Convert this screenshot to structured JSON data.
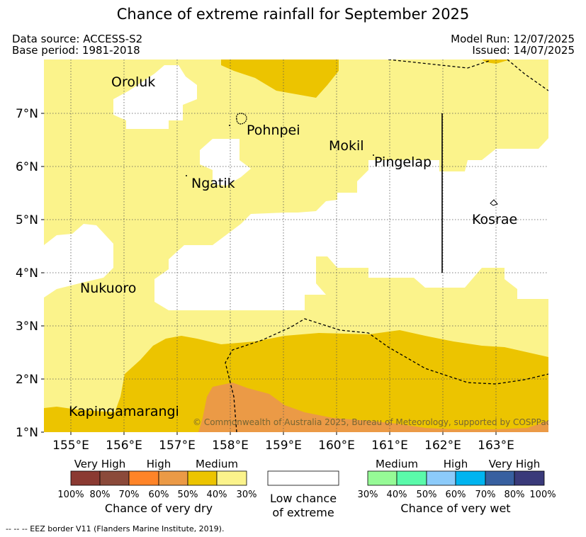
{
  "title": "Chance of extreme rainfall for September 2025",
  "header": {
    "data_source": "Data source: ACCESS-S2",
    "base_period": "Base period: 1981-2018",
    "model_run": "Model Run: 12/07/2025",
    "issued": "Issued: 14/07/2025"
  },
  "map": {
    "places": [
      "Oroluk",
      "Pohnpei",
      "Mokil",
      "Pingelap",
      "Ngatik",
      "Kosrae",
      "Nukuoro",
      "Kapingamarangi"
    ],
    "lon_ticks": [
      "155°E",
      "156°E",
      "157°E",
      "158°E",
      "159°E",
      "160°E",
      "161°E",
      "162°E",
      "163°E"
    ],
    "lat_ticks": [
      "7°N",
      "6°N",
      "5°N",
      "4°N",
      "3°N",
      "2°N",
      "1°N"
    ],
    "copyright": "© Commonwealth of Australia 2025, Bureau of Meteorology, supported by COSPPac"
  },
  "colors": {
    "dry_100_80": "#8B3A32",
    "dry_80_70": "#8B4A3A",
    "dry_70_60": "#FF8428",
    "dry_60_50": "#EB9A46",
    "dry_50_40": "#ECC400",
    "dry_40_30": "#FBF38B",
    "wet_30_40": "#96FA96",
    "wet_40_50": "#5AFAAA",
    "wet_50_60": "#8CCBFA",
    "wet_60_70": "#00B4F0",
    "wet_70_80": "#3860A0",
    "wet_80_100": "#3A3A7A"
  },
  "legend": {
    "dry": {
      "levels": [
        "Very High",
        "High",
        "Medium"
      ],
      "percents": [
        "100%",
        "80%",
        "70%",
        "60%",
        "50%",
        "40%",
        "30%"
      ],
      "caption": "Chance of very dry"
    },
    "low": {
      "line1": "Low chance",
      "line2": "of extreme"
    },
    "wet": {
      "levels": [
        "Medium",
        "High",
        "Very High"
      ],
      "percents": [
        "30%",
        "40%",
        "50%",
        "60%",
        "70%",
        "80%",
        "100%"
      ],
      "caption": "Chance of very wet"
    }
  },
  "footnote": "-- -- -- EEZ border V11 (Flanders Marine Institute, 2019)."
}
